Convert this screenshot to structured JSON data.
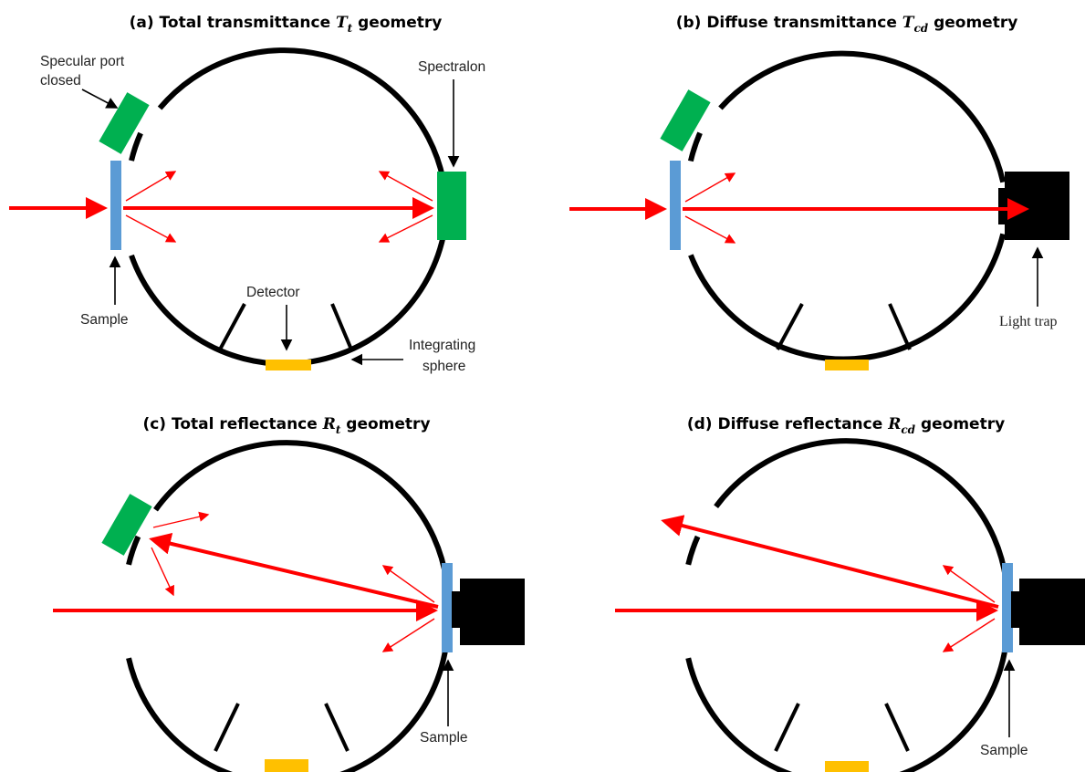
{
  "panels": {
    "a": {
      "title_prefix": "(a) Total transmittance ",
      "symbol": "T",
      "subscript": "t",
      "title_suffix": " geometry"
    },
    "b": {
      "title_prefix": "(b) Diffuse transmittance ",
      "symbol": "T",
      "subscript": "cd",
      "title_suffix": " geometry"
    },
    "c": {
      "title_prefix": "(c) Total reflectance ",
      "symbol": "R",
      "subscript": "t",
      "title_suffix": " geometry"
    },
    "d": {
      "title_prefix": "(d) Diffuse reflectance ",
      "symbol": "R",
      "subscript": "cd",
      "title_suffix": " geometry"
    }
  },
  "labels": {
    "specular_port_line1": "Specular port",
    "specular_port_line2": "closed",
    "spectralon": "Spectralon",
    "sample_a": "Sample",
    "detector": "Detector",
    "integrating_line1": "Integrating",
    "integrating_line2": "sphere",
    "light_trap": "Light trap",
    "sample_c": "Sample",
    "sample_d": "Sample"
  },
  "colors": {
    "beam": "#ff0000",
    "sample": "#5b9bd5",
    "port": "#00b050",
    "detector": "#ffc000",
    "sphere": "#000000"
  }
}
